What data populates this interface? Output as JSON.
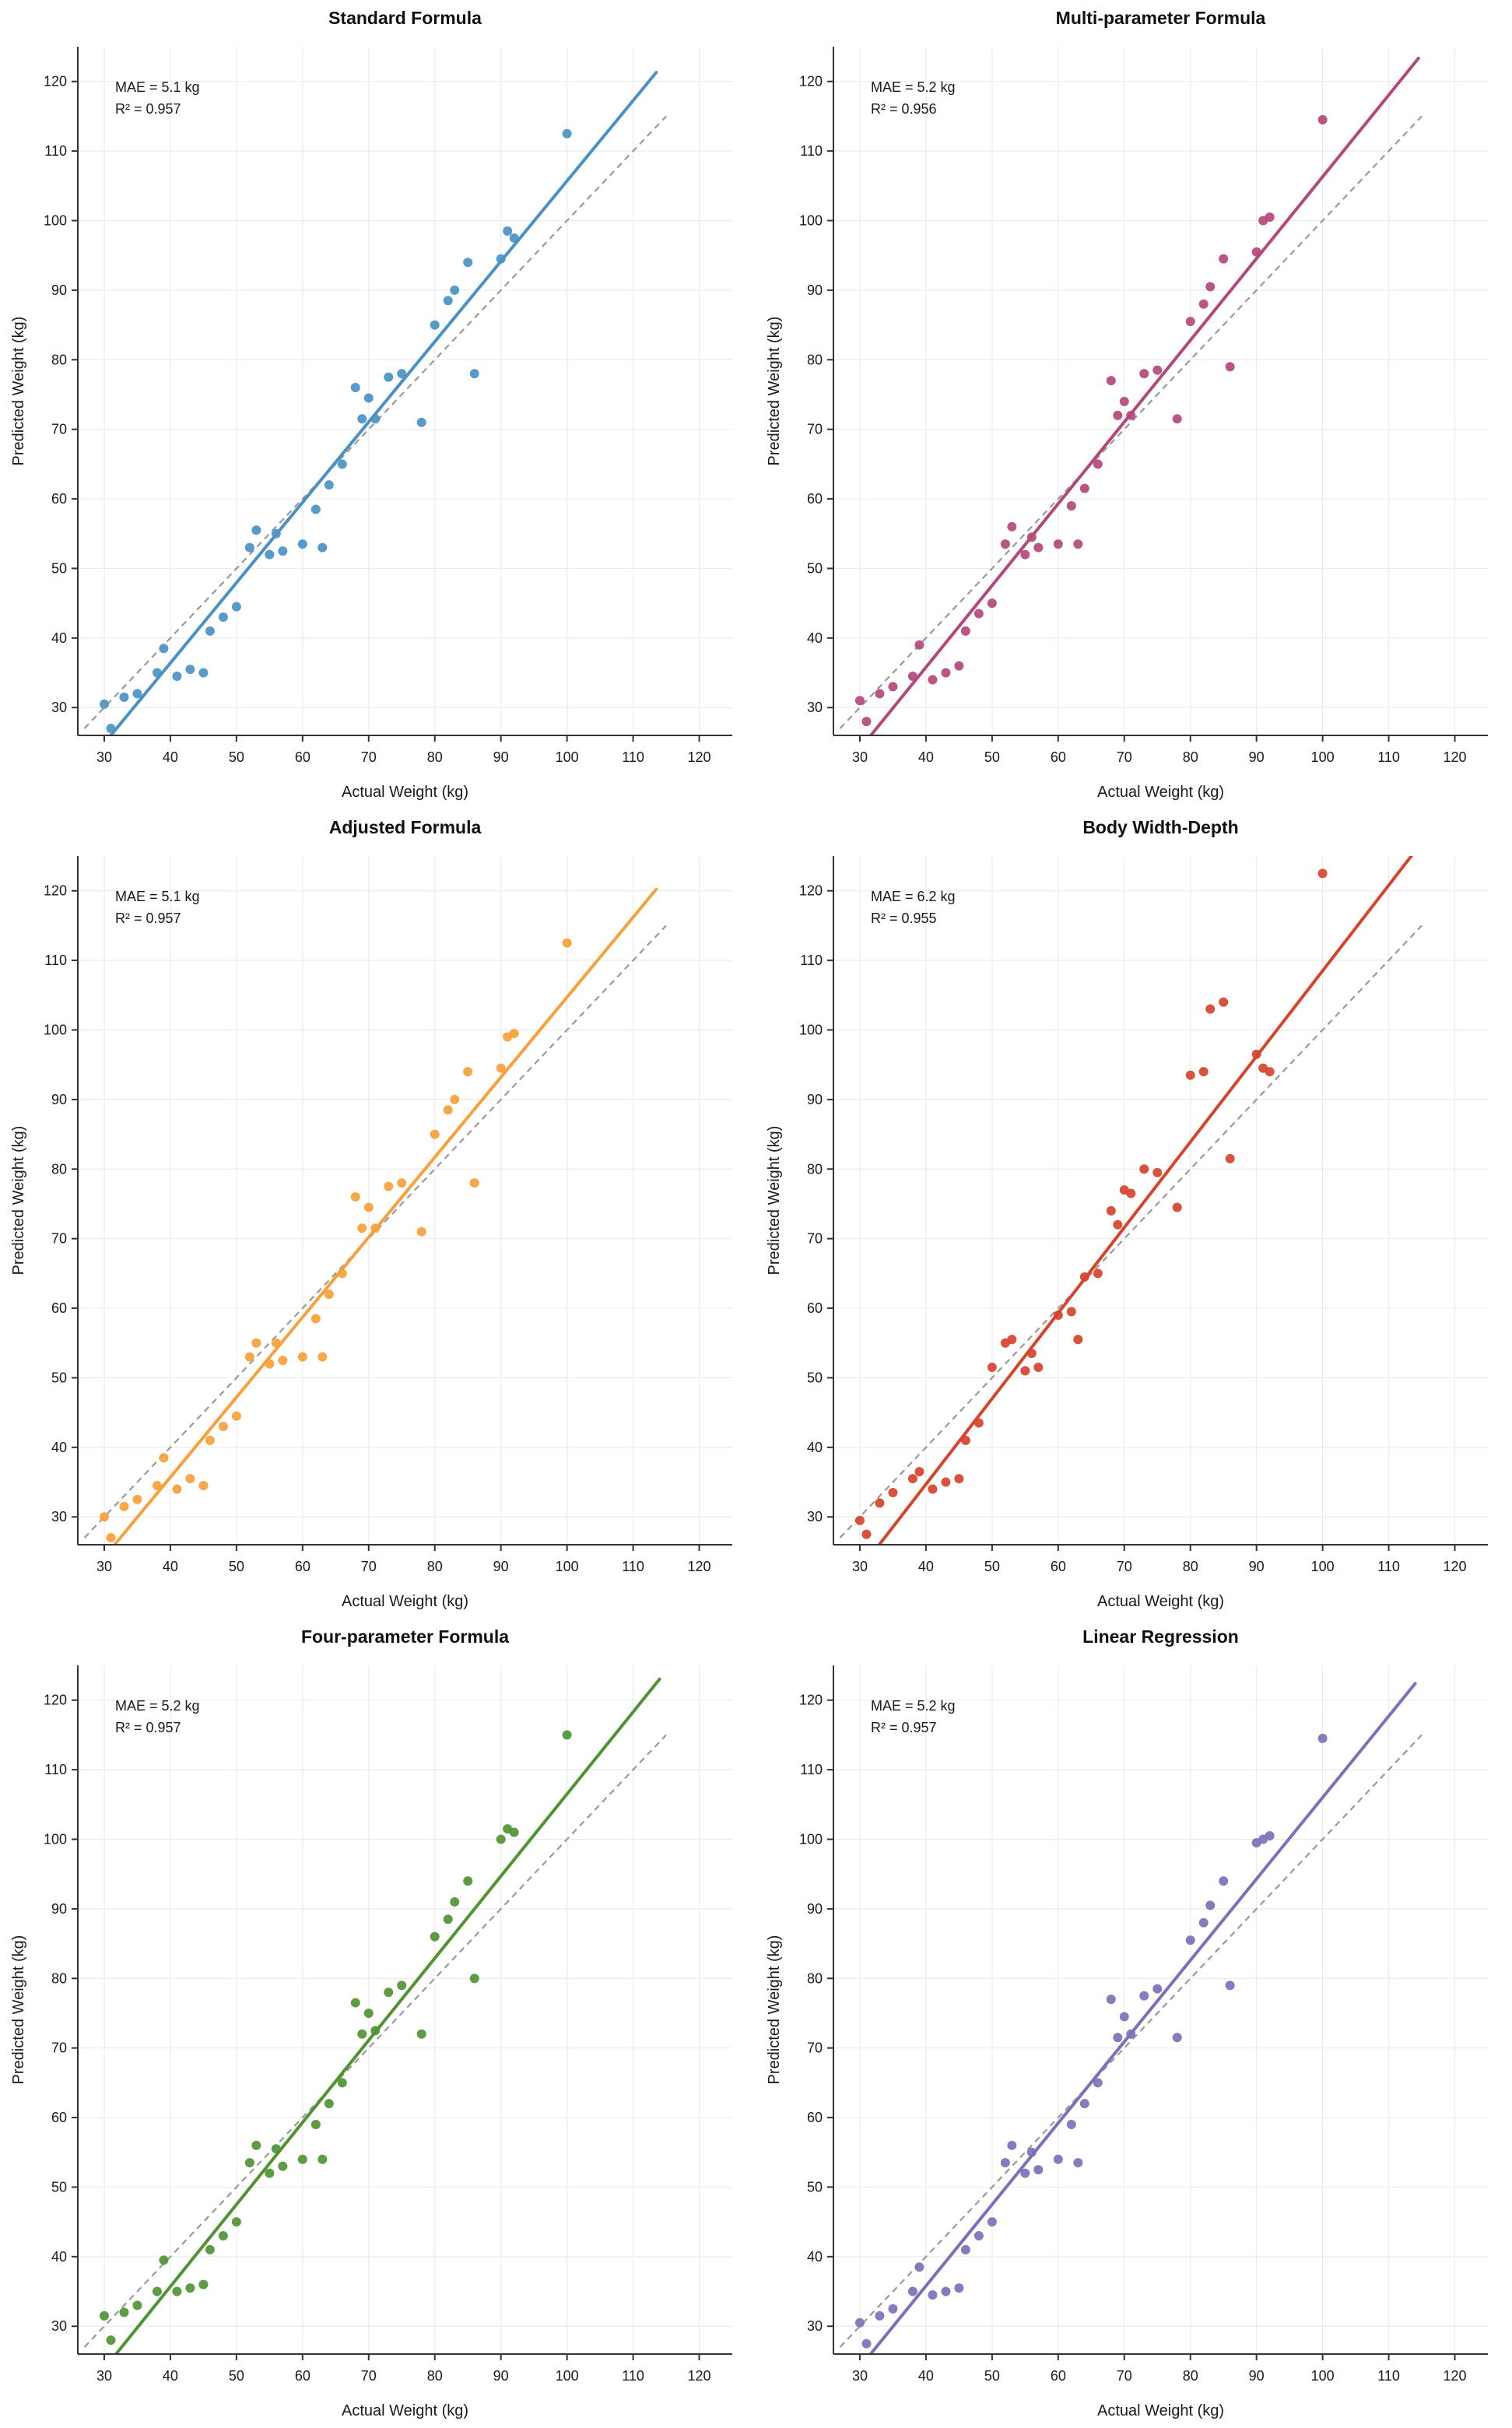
{
  "theme": {
    "background": "#ffffff",
    "grid_color": "#ececec",
    "axis_color": "#333333",
    "text_color": "#1a1a1a",
    "identity_line_color": "#999999"
  },
  "chart_data": [
    {
      "type": "scatter",
      "title": "Standard Formula",
      "xlabel": "Actual Weight (kg)",
      "ylabel": "Predicted Weight (kg)",
      "xlim": [
        26,
        125
      ],
      "ylim": [
        26,
        125
      ],
      "xticks": [
        30,
        40,
        50,
        60,
        70,
        80,
        90,
        100,
        110,
        120
      ],
      "yticks": [
        30,
        40,
        50,
        60,
        70,
        80,
        90,
        100,
        110,
        120
      ],
      "color": "#4A91C4",
      "annotation": {
        "mae": "MAE = 5.1 kg",
        "r2": "R² = 0.957"
      },
      "fit_line": {
        "slope": 1.155,
        "intercept": -9.8,
        "x_range": [
          28.5,
          113.5
        ]
      },
      "identity_line": {
        "x_range": [
          27,
          115
        ],
        "color": "#999999",
        "dashed": true
      },
      "points": [
        [
          30,
          30.5
        ],
        [
          31,
          27
        ],
        [
          33,
          31.5
        ],
        [
          35,
          32
        ],
        [
          38,
          35
        ],
        [
          39,
          38.5
        ],
        [
          41,
          34.5
        ],
        [
          43,
          35.5
        ],
        [
          45,
          35
        ],
        [
          46,
          41
        ],
        [
          48,
          43
        ],
        [
          50,
          44.5
        ],
        [
          52,
          53
        ],
        [
          53,
          55.5
        ],
        [
          55,
          52
        ],
        [
          56,
          55
        ],
        [
          57,
          52.5
        ],
        [
          60,
          53.5
        ],
        [
          62,
          58.5
        ],
        [
          63,
          53
        ],
        [
          64,
          62
        ],
        [
          66,
          65
        ],
        [
          68,
          76
        ],
        [
          69,
          71.5
        ],
        [
          70,
          74.5
        ],
        [
          71,
          71.5
        ],
        [
          73,
          77.5
        ],
        [
          75,
          78
        ],
        [
          78,
          71
        ],
        [
          80,
          85
        ],
        [
          82,
          88.5
        ],
        [
          83,
          90
        ],
        [
          85,
          94
        ],
        [
          86,
          78
        ],
        [
          90,
          94.5
        ],
        [
          91,
          98.5
        ],
        [
          92,
          97.5
        ],
        [
          100,
          112.5
        ]
      ]
    },
    {
      "type": "scatter",
      "title": "Multi-parameter Formula",
      "xlabel": "Actual Weight (kg)",
      "ylabel": "Predicted Weight (kg)",
      "xlim": [
        26,
        125
      ],
      "ylim": [
        26,
        125
      ],
      "xticks": [
        30,
        40,
        50,
        60,
        70,
        80,
        90,
        100,
        110,
        120
      ],
      "yticks": [
        30,
        40,
        50,
        60,
        70,
        80,
        90,
        100,
        110,
        120
      ],
      "color": "#B4487C",
      "annotation": {
        "mae": "MAE = 5.2 kg",
        "r2": "R² = 0.956"
      },
      "fit_line": {
        "slope": 1.175,
        "intercept": -11.2,
        "x_range": [
          28.5,
          114.5
        ]
      },
      "identity_line": {
        "x_range": [
          27,
          115
        ],
        "color": "#999999",
        "dashed": true
      },
      "points": [
        [
          30,
          31
        ],
        [
          31,
          28
        ],
        [
          33,
          32
        ],
        [
          35,
          33
        ],
        [
          38,
          34.5
        ],
        [
          39,
          39
        ],
        [
          41,
          34
        ],
        [
          43,
          35
        ],
        [
          45,
          36
        ],
        [
          46,
          41
        ],
        [
          48,
          43.5
        ],
        [
          50,
          45
        ],
        [
          52,
          53.5
        ],
        [
          53,
          56
        ],
        [
          55,
          52
        ],
        [
          56,
          54.5
        ],
        [
          57,
          53
        ],
        [
          60,
          53.5
        ],
        [
          62,
          59
        ],
        [
          63,
          53.5
        ],
        [
          64,
          61.5
        ],
        [
          66,
          65
        ],
        [
          68,
          77
        ],
        [
          69,
          72
        ],
        [
          70,
          74
        ],
        [
          71,
          72
        ],
        [
          73,
          78
        ],
        [
          75,
          78.5
        ],
        [
          78,
          71.5
        ],
        [
          80,
          85.5
        ],
        [
          82,
          88
        ],
        [
          83,
          90.5
        ],
        [
          85,
          94.5
        ],
        [
          86,
          79
        ],
        [
          90,
          95.5
        ],
        [
          91,
          100
        ],
        [
          92,
          100.5
        ],
        [
          100,
          114.5
        ]
      ]
    },
    {
      "type": "scatter",
      "title": "Adjusted Formula",
      "xlabel": "Actual Weight (kg)",
      "ylabel": "Predicted Weight (kg)",
      "xlim": [
        26,
        125
      ],
      "ylim": [
        26,
        125
      ],
      "xticks": [
        30,
        40,
        50,
        60,
        70,
        80,
        90,
        100,
        110,
        120
      ],
      "yticks": [
        30,
        40,
        50,
        60,
        70,
        80,
        90,
        100,
        110,
        120
      ],
      "color": "#F9A03A",
      "annotation": {
        "mae": "MAE = 5.1 kg",
        "r2": "R² = 0.957"
      },
      "fit_line": {
        "slope": 1.15,
        "intercept": -10.3,
        "x_range": [
          28.5,
          113.5
        ]
      },
      "identity_line": {
        "x_range": [
          27,
          115
        ],
        "color": "#999999",
        "dashed": true
      },
      "points": [
        [
          30,
          30
        ],
        [
          31,
          27
        ],
        [
          33,
          31.5
        ],
        [
          35,
          32.5
        ],
        [
          38,
          34.5
        ],
        [
          39,
          38.5
        ],
        [
          41,
          34
        ],
        [
          43,
          35.5
        ],
        [
          45,
          34.5
        ],
        [
          46,
          41
        ],
        [
          48,
          43
        ],
        [
          50,
          44.5
        ],
        [
          52,
          53
        ],
        [
          53,
          55
        ],
        [
          55,
          52
        ],
        [
          56,
          55
        ],
        [
          57,
          52.5
        ],
        [
          60,
          53
        ],
        [
          62,
          58.5
        ],
        [
          63,
          53
        ],
        [
          64,
          62
        ],
        [
          66,
          65
        ],
        [
          68,
          76
        ],
        [
          69,
          71.5
        ],
        [
          70,
          74.5
        ],
        [
          71,
          71.5
        ],
        [
          73,
          77.5
        ],
        [
          75,
          78
        ],
        [
          78,
          71
        ],
        [
          80,
          85
        ],
        [
          82,
          88.5
        ],
        [
          83,
          90
        ],
        [
          85,
          94
        ],
        [
          86,
          78
        ],
        [
          90,
          94.5
        ],
        [
          91,
          99
        ],
        [
          92,
          99.5
        ],
        [
          100,
          112.5
        ]
      ]
    },
    {
      "type": "scatter",
      "title": "Body Width-Depth",
      "xlabel": "Actual Weight (kg)",
      "ylabel": "Predicted Weight (kg)",
      "xlim": [
        26,
        125
      ],
      "ylim": [
        26,
        125
      ],
      "xticks": [
        30,
        40,
        50,
        60,
        70,
        80,
        90,
        100,
        110,
        120
      ],
      "yticks": [
        30,
        40,
        50,
        60,
        70,
        80,
        90,
        100,
        110,
        120
      ],
      "color": "#D6442B",
      "annotation": {
        "mae": "MAE = 6.2 kg",
        "r2": "R² = 0.955"
      },
      "fit_line": {
        "slope": 1.23,
        "intercept": -14.5,
        "x_range": [
          28.5,
          114
        ]
      },
      "identity_line": {
        "x_range": [
          27,
          115
        ],
        "color": "#999999",
        "dashed": true
      },
      "points": [
        [
          30,
          29.5
        ],
        [
          31,
          27.5
        ],
        [
          33,
          32
        ],
        [
          35,
          33.5
        ],
        [
          38,
          35.5
        ],
        [
          39,
          36.5
        ],
        [
          41,
          34
        ],
        [
          43,
          35
        ],
        [
          45,
          35.5
        ],
        [
          46,
          41
        ],
        [
          48,
          43.5
        ],
        [
          50,
          51.5
        ],
        [
          52,
          55
        ],
        [
          53,
          55.5
        ],
        [
          55,
          51
        ],
        [
          56,
          53.5
        ],
        [
          57,
          51.5
        ],
        [
          60,
          59
        ],
        [
          62,
          59.5
        ],
        [
          63,
          55.5
        ],
        [
          64,
          64.5
        ],
        [
          66,
          65
        ],
        [
          68,
          74
        ],
        [
          69,
          72
        ],
        [
          70,
          77
        ],
        [
          71,
          76.5
        ],
        [
          73,
          80
        ],
        [
          75,
          79.5
        ],
        [
          78,
          74.5
        ],
        [
          80,
          93.5
        ],
        [
          82,
          94
        ],
        [
          83,
          103
        ],
        [
          85,
          104
        ],
        [
          86,
          81.5
        ],
        [
          90,
          96.5
        ],
        [
          91,
          94.5
        ],
        [
          92,
          94
        ],
        [
          100,
          122.5
        ]
      ]
    },
    {
      "type": "scatter",
      "title": "Four-parameter Formula",
      "xlabel": "Actual Weight (kg)",
      "ylabel": "Predicted Weight (kg)",
      "xlim": [
        26,
        125
      ],
      "ylim": [
        26,
        125
      ],
      "xticks": [
        30,
        40,
        50,
        60,
        70,
        80,
        90,
        100,
        110,
        120
      ],
      "yticks": [
        30,
        40,
        50,
        60,
        70,
        80,
        90,
        100,
        110,
        120
      ],
      "color": "#4F9432",
      "annotation": {
        "mae": "MAE = 5.2 kg",
        "r2": "R² = 0.957"
      },
      "fit_line": {
        "slope": 1.18,
        "intercept": -11.5,
        "x_range": [
          28.5,
          114
        ]
      },
      "identity_line": {
        "x_range": [
          27,
          115
        ],
        "color": "#999999",
        "dashed": true
      },
      "points": [
        [
          30,
          31.5
        ],
        [
          31,
          28
        ],
        [
          33,
          32
        ],
        [
          35,
          33
        ],
        [
          38,
          35
        ],
        [
          39,
          39.5
        ],
        [
          41,
          35
        ],
        [
          43,
          35.5
        ],
        [
          45,
          36
        ],
        [
          46,
          41
        ],
        [
          48,
          43
        ],
        [
          50,
          45
        ],
        [
          52,
          53.5
        ],
        [
          53,
          56
        ],
        [
          55,
          52
        ],
        [
          56,
          55.5
        ],
        [
          57,
          53
        ],
        [
          60,
          54
        ],
        [
          62,
          59
        ],
        [
          63,
          54
        ],
        [
          64,
          62
        ],
        [
          66,
          65
        ],
        [
          68,
          76.5
        ],
        [
          69,
          72
        ],
        [
          70,
          75
        ],
        [
          71,
          72.5
        ],
        [
          73,
          78
        ],
        [
          75,
          79
        ],
        [
          78,
          72
        ],
        [
          80,
          86
        ],
        [
          82,
          88.5
        ],
        [
          83,
          91
        ],
        [
          85,
          94
        ],
        [
          86,
          80
        ],
        [
          90,
          100
        ],
        [
          91,
          101.5
        ],
        [
          92,
          101
        ],
        [
          100,
          115
        ]
      ]
    },
    {
      "type": "scatter",
      "title": "Linear Regression",
      "xlabel": "Actual Weight (kg)",
      "ylabel": "Predicted Weight (kg)",
      "xlim": [
        26,
        125
      ],
      "ylim": [
        26,
        125
      ],
      "xticks": [
        30,
        40,
        50,
        60,
        70,
        80,
        90,
        100,
        110,
        120
      ],
      "yticks": [
        30,
        40,
        50,
        60,
        70,
        80,
        90,
        100,
        110,
        120
      ],
      "color": "#7D6FB9",
      "annotation": {
        "mae": "MAE = 5.2 kg",
        "r2": "R² = 0.957"
      },
      "fit_line": {
        "slope": 1.17,
        "intercept": -11.0,
        "x_range": [
          28.5,
          114
        ]
      },
      "identity_line": {
        "x_range": [
          27,
          115
        ],
        "color": "#999999",
        "dashed": true
      },
      "points": [
        [
          30,
          30.5
        ],
        [
          31,
          27.5
        ],
        [
          33,
          31.5
        ],
        [
          35,
          32.5
        ],
        [
          38,
          35
        ],
        [
          39,
          38.5
        ],
        [
          41,
          34.5
        ],
        [
          43,
          35
        ],
        [
          45,
          35.5
        ],
        [
          46,
          41
        ],
        [
          48,
          43
        ],
        [
          50,
          45
        ],
        [
          52,
          53.5
        ],
        [
          53,
          56
        ],
        [
          55,
          52
        ],
        [
          56,
          55
        ],
        [
          57,
          52.5
        ],
        [
          60,
          54
        ],
        [
          62,
          59
        ],
        [
          63,
          53.5
        ],
        [
          64,
          62
        ],
        [
          66,
          65
        ],
        [
          68,
          77
        ],
        [
          69,
          71.5
        ],
        [
          70,
          74.5
        ],
        [
          71,
          72
        ],
        [
          73,
          77.5
        ],
        [
          75,
          78.5
        ],
        [
          78,
          71.5
        ],
        [
          80,
          85.5
        ],
        [
          82,
          88
        ],
        [
          83,
          90.5
        ],
        [
          85,
          94
        ],
        [
          86,
          79
        ],
        [
          90,
          99.5
        ],
        [
          91,
          100
        ],
        [
          92,
          100.5
        ],
        [
          100,
          114.5
        ]
      ]
    }
  ]
}
